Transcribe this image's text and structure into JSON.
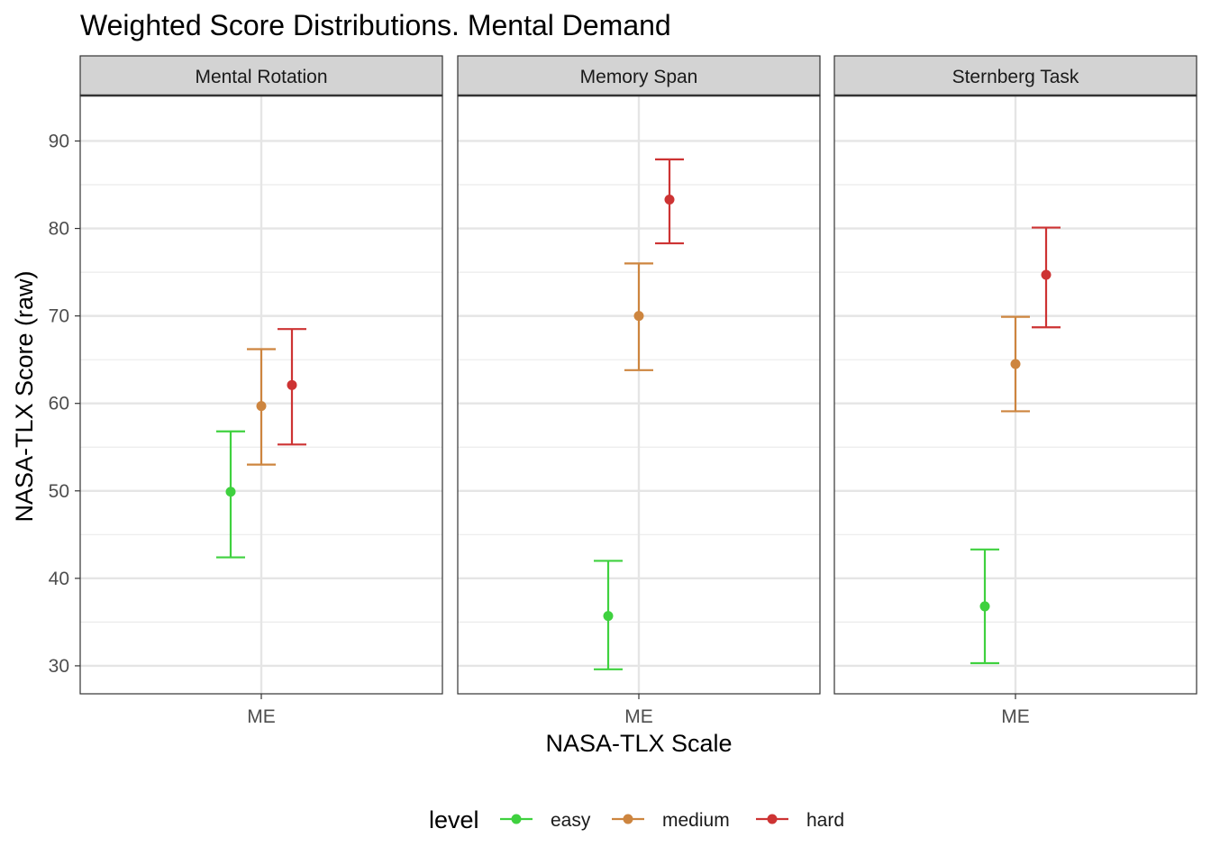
{
  "chart_data": {
    "type": "scatter",
    "title": "Weighted Score Distributions. Mental Demand",
    "xlabel": "NASA-TLX Scale",
    "ylabel": "NASA-TLX Score (raw)",
    "ylim": [
      26.8,
      95.2
    ],
    "y_ticks": [
      30,
      40,
      50,
      60,
      70,
      80,
      90
    ],
    "grid": true,
    "legend": {
      "title": "level",
      "position": "bottom",
      "entries": [
        "easy",
        "medium",
        "hard"
      ]
    },
    "colors": {
      "easy": "#3fd13f",
      "medium": "#cd853f",
      "hard": "#cd3333"
    },
    "panels": [
      {
        "title": "Mental Rotation",
        "x_label": "ME",
        "series": [
          {
            "level": "easy",
            "mean": 49.9,
            "low": 42.4,
            "high": 56.8
          },
          {
            "level": "medium",
            "mean": 59.7,
            "low": 53.0,
            "high": 66.2
          },
          {
            "level": "hard",
            "mean": 62.1,
            "low": 55.3,
            "high": 68.5
          }
        ]
      },
      {
        "title": "Memory Span",
        "x_label": "ME",
        "series": [
          {
            "level": "easy",
            "mean": 35.7,
            "low": 29.6,
            "high": 42.0
          },
          {
            "level": "medium",
            "mean": 70.0,
            "low": 63.8,
            "high": 76.0
          },
          {
            "level": "hard",
            "mean": 83.3,
            "low": 78.3,
            "high": 87.9
          }
        ]
      },
      {
        "title": "Sternberg Task",
        "x_label": "ME",
        "series": [
          {
            "level": "easy",
            "mean": 36.8,
            "low": 30.3,
            "high": 43.3
          },
          {
            "level": "medium",
            "mean": 64.5,
            "low": 59.1,
            "high": 69.9
          },
          {
            "level": "hard",
            "mean": 74.7,
            "low": 68.7,
            "high": 80.1
          }
        ]
      }
    ]
  }
}
